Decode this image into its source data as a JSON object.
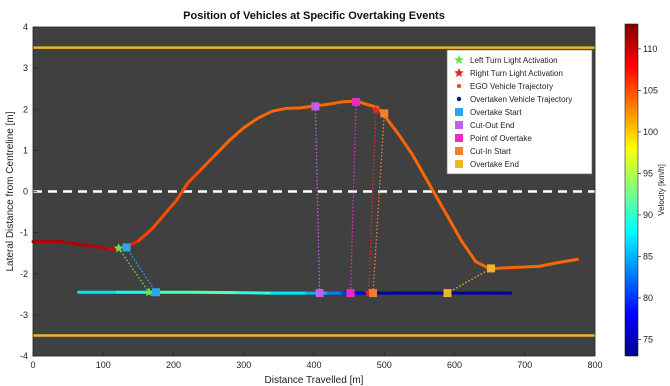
{
  "chart_data": {
    "type": "scatter",
    "title": "Position of Vehicles at Specific Overtaking Events",
    "xlabel": "Distance Travelled [m]",
    "ylabel": "Lateral Distance from Centreline [m]",
    "xlim": [
      0,
      800
    ],
    "ylim": [
      -4,
      4
    ],
    "xticks": [
      0,
      100,
      200,
      300,
      400,
      500,
      600,
      700,
      800
    ],
    "yticks": [
      -4,
      -3,
      -2,
      -1,
      0,
      1,
      2,
      3,
      4
    ],
    "grid": false,
    "legend_position": "top-right",
    "colorbar": {
      "label": "Velocity [km/h]",
      "range": [
        73,
        113
      ],
      "ticks": [
        75,
        80,
        85,
        90,
        95,
        100,
        105,
        110
      ],
      "colormap": "jet"
    },
    "road": {
      "background_color": "#404040",
      "edge_lines_y": [
        3.5,
        -3.5
      ],
      "edge_color": "#f3b32b",
      "centerline_y": 0
    },
    "series": [
      {
        "name": "EGO Vehicle Trajectory",
        "marker": "dot",
        "points": [
          [
            0,
            -1.22
          ],
          [
            40,
            -1.22
          ],
          [
            80,
            -1.32
          ],
          [
            110,
            -1.4
          ],
          [
            130,
            -1.38
          ],
          [
            150,
            -1.2
          ],
          [
            170,
            -0.9
          ],
          [
            190,
            -0.5
          ],
          [
            205,
            -0.2
          ],
          [
            220,
            0.2
          ],
          [
            240,
            0.55
          ],
          [
            260,
            0.9
          ],
          [
            280,
            1.25
          ],
          [
            300,
            1.55
          ],
          [
            320,
            1.78
          ],
          [
            340,
            1.95
          ],
          [
            360,
            2.02
          ],
          [
            380,
            2.03
          ],
          [
            400,
            2.08
          ],
          [
            420,
            2.12
          ],
          [
            440,
            2.18
          ],
          [
            460,
            2.2
          ],
          [
            475,
            2.12
          ],
          [
            490,
            2.05
          ],
          [
            500,
            1.85
          ],
          [
            520,
            1.4
          ],
          [
            540,
            0.9
          ],
          [
            560,
            0.3
          ],
          [
            570,
            0.0
          ],
          [
            590,
            -0.6
          ],
          [
            610,
            -1.2
          ],
          [
            630,
            -1.7
          ],
          [
            650,
            -1.88
          ],
          [
            680,
            -1.85
          ],
          [
            720,
            -1.82
          ],
          [
            750,
            -1.72
          ],
          [
            775,
            -1.65
          ]
        ],
        "velocity": [
          111,
          111,
          111,
          110,
          108,
          106,
          105,
          105,
          105,
          105,
          105,
          104,
          104,
          104,
          104,
          104,
          104,
          104,
          104,
          104,
          104,
          104,
          104,
          104,
          104,
          104,
          104,
          104,
          104,
          104,
          104,
          104,
          104,
          104,
          104,
          104,
          104
        ]
      },
      {
        "name": "Overtaken Vehicle Trajectory",
        "marker": "dot",
        "points": [
          [
            65,
            -2.45
          ],
          [
            120,
            -2.45
          ],
          [
            170,
            -2.45
          ],
          [
            230,
            -2.45
          ],
          [
            290,
            -2.46
          ],
          [
            340,
            -2.47
          ],
          [
            390,
            -2.47
          ],
          [
            420,
            -2.47
          ],
          [
            440,
            -2.47
          ],
          [
            460,
            -2.47
          ],
          [
            480,
            -2.47
          ],
          [
            520,
            -2.47
          ],
          [
            560,
            -2.47
          ],
          [
            600,
            -2.47
          ],
          [
            640,
            -2.47
          ],
          [
            680,
            -2.47
          ]
        ],
        "velocity": [
          87,
          87,
          90,
          92,
          91,
          88,
          86,
          84,
          82,
          78,
          75,
          74,
          74,
          74,
          74,
          74
        ]
      },
      {
        "name": "Left Turn Light Activation",
        "marker": "star",
        "color": "#6ee04a",
        "points": [
          [
            122,
            -1.38
          ],
          [
            165,
            -2.45
          ]
        ]
      },
      {
        "name": "Right Turn Light Activation",
        "marker": "star",
        "color": "#e02a1e",
        "points": [
          [
            488,
            1.98
          ],
          [
            478,
            -2.47
          ]
        ]
      },
      {
        "name": "Overtake Start",
        "marker": "square",
        "color": "#2aa8f0",
        "points": [
          [
            133,
            -1.36
          ],
          [
            175,
            -2.45
          ]
        ]
      },
      {
        "name": "Cut-Out End",
        "marker": "square",
        "color": "#c060ec",
        "points": [
          [
            402,
            2.07
          ],
          [
            408,
            -2.47
          ]
        ]
      },
      {
        "name": "Point of Overtake",
        "marker": "square",
        "color": "#ea2bc2",
        "points": [
          [
            460,
            2.18
          ],
          [
            452,
            -2.47
          ]
        ]
      },
      {
        "name": "Cut-In Start",
        "marker": "square",
        "color": "#f08030",
        "points": [
          [
            500,
            1.9
          ],
          [
            484,
            -2.47
          ]
        ]
      },
      {
        "name": "Overtake End",
        "marker": "square",
        "color": "#f3b32b",
        "points": [
          [
            652,
            -1.87
          ],
          [
            590,
            -2.47
          ]
        ]
      }
    ]
  }
}
